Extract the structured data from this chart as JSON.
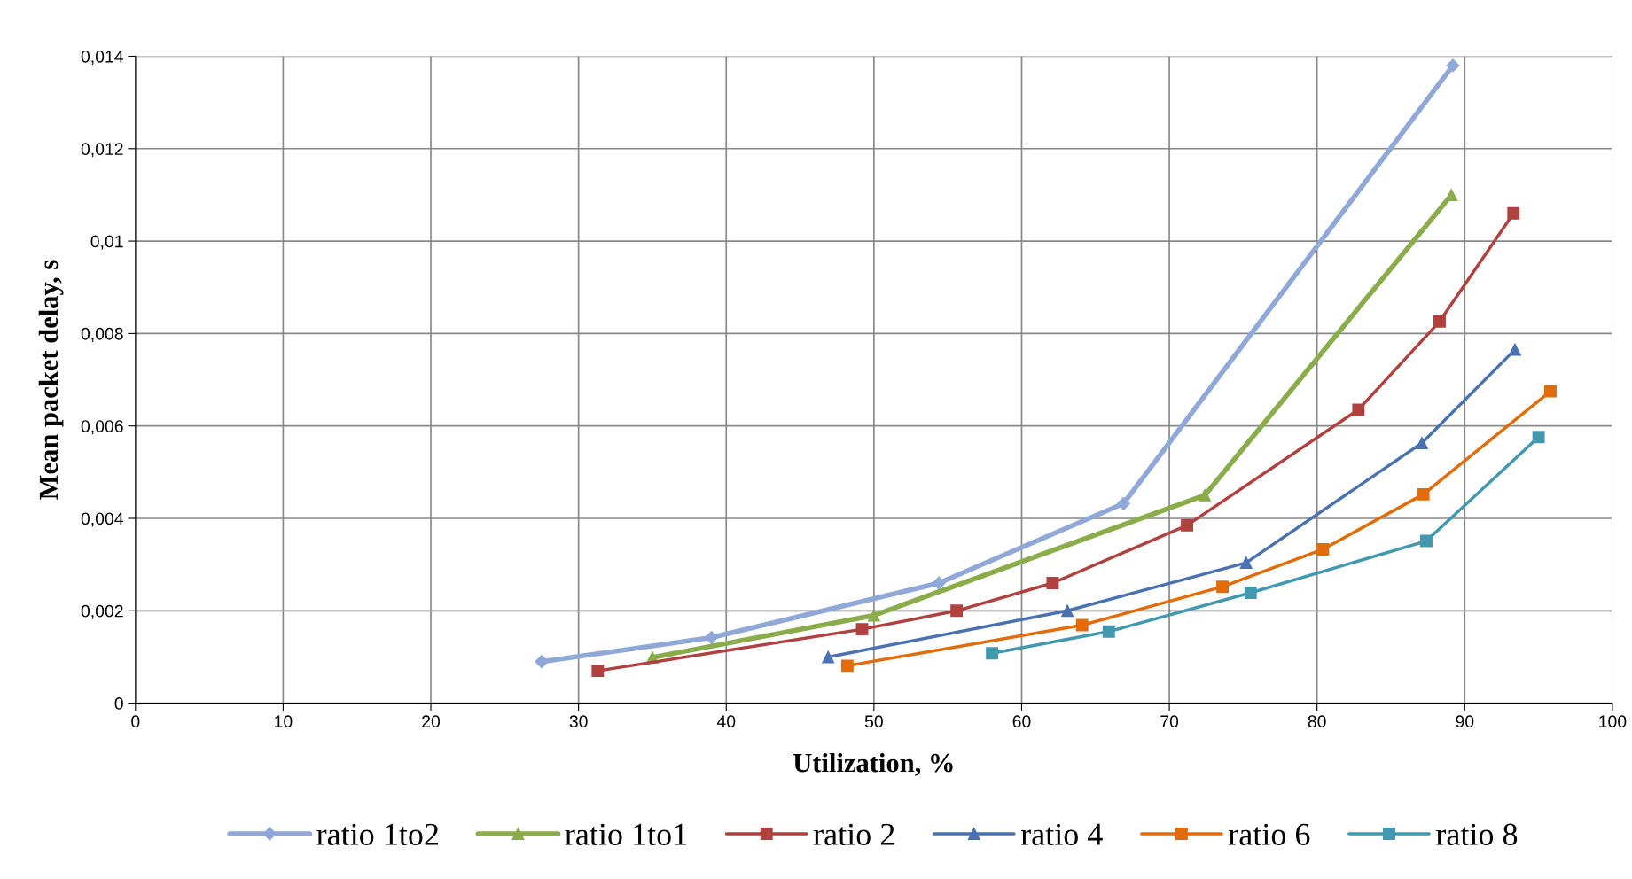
{
  "chart_data": {
    "type": "line",
    "xlabel": "Utilization, %",
    "ylabel": "Mean packet delay, s",
    "xlim": [
      0,
      100
    ],
    "xticks": [
      0,
      10,
      20,
      30,
      40,
      50,
      60,
      70,
      80,
      90,
      100
    ],
    "ylim": [
      0,
      0.014
    ],
    "yticks": [
      0,
      {
        "value": 0.002,
        "label": "0,002"
      },
      {
        "value": 0.004,
        "label": "0,004"
      },
      {
        "value": 0.006,
        "label": "0,006"
      },
      {
        "value": 0.008,
        "label": "0,008"
      },
      {
        "value": 0.01,
        "label": "0,01"
      },
      {
        "value": 0.012,
        "label": "0,012"
      },
      {
        "value": 0.014,
        "label": "0,014"
      }
    ],
    "grid": true,
    "legend": "bottom",
    "line_style": "solid",
    "series": [
      {
        "name": "ratio 1to2",
        "color": "#8fa8d8",
        "marker": "diamond",
        "x": [
          27.5,
          39.0,
          54.4,
          66.9,
          89.2
        ],
        "values": [
          0.0009,
          0.00142,
          0.0026,
          0.00432,
          0.0138
        ]
      },
      {
        "name": "ratio 1to1",
        "color": "#8aac4b",
        "marker": "triangle",
        "x": [
          35.0,
          50.0,
          72.4,
          89.1
        ],
        "values": [
          0.00099,
          0.0019,
          0.0045,
          0.011
        ]
      },
      {
        "name": "ratio 2",
        "color": "#b0413e",
        "marker": "square",
        "x": [
          31.3,
          49.2,
          55.6,
          62.1,
          71.2,
          82.8,
          88.3,
          93.3
        ],
        "values": [
          0.0007,
          0.0016,
          0.002,
          0.0026,
          0.00385,
          0.00635,
          0.00826,
          0.0106
        ]
      },
      {
        "name": "ratio 4",
        "color": "#4a72b0",
        "marker": "triangle",
        "x": [
          46.9,
          63.1,
          75.2,
          87.1,
          93.4
        ],
        "values": [
          0.001,
          0.002,
          0.00304,
          0.00563,
          0.00765
        ]
      },
      {
        "name": "ratio 6",
        "color": "#e36c0a",
        "marker": "square",
        "x": [
          48.2,
          64.1,
          73.6,
          80.4,
          87.2,
          95.8
        ],
        "values": [
          0.00081,
          0.00169,
          0.00252,
          0.00333,
          0.00452,
          0.00675
        ]
      },
      {
        "name": "ratio 8",
        "color": "#4198af",
        "marker": "square",
        "x": [
          58.0,
          65.9,
          75.5,
          87.4,
          95.0
        ],
        "values": [
          0.00108,
          0.00155,
          0.00239,
          0.00351,
          0.00576
        ]
      }
    ]
  }
}
